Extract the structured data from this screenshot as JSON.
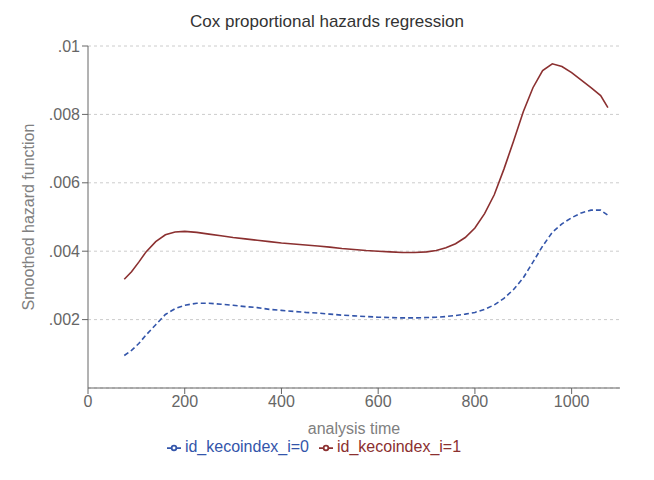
{
  "chart_data": {
    "type": "line",
    "title": "Cox proportional hazards regression",
    "xlabel": "analysis time",
    "ylabel": "Smoothed hazard function",
    "x": [
      75,
      90,
      105,
      120,
      140,
      160,
      180,
      200,
      225,
      250,
      275,
      300,
      325,
      350,
      375,
      400,
      425,
      450,
      475,
      500,
      525,
      550,
      575,
      600,
      625,
      650,
      675,
      700,
      720,
      740,
      760,
      780,
      800,
      820,
      840,
      860,
      880,
      900,
      920,
      940,
      960,
      980,
      1000,
      1020,
      1040,
      1060,
      1075
    ],
    "series": [
      {
        "name": "id_kecoindex_i=0",
        "color": "#3355aa",
        "line_style": "dashed",
        "values": [
          0.00095,
          0.0011,
          0.0013,
          0.00155,
          0.00185,
          0.00215,
          0.00232,
          0.00242,
          0.00248,
          0.00248,
          0.00245,
          0.00242,
          0.00238,
          0.00235,
          0.0023,
          0.00227,
          0.00224,
          0.00221,
          0.00219,
          0.00216,
          0.00213,
          0.00211,
          0.00209,
          0.00207,
          0.00206,
          0.00205,
          0.00205,
          0.00206,
          0.00207,
          0.00209,
          0.00212,
          0.00216,
          0.00221,
          0.0023,
          0.00243,
          0.00262,
          0.00288,
          0.00322,
          0.00368,
          0.00415,
          0.00455,
          0.0048,
          0.00498,
          0.00512,
          0.0052,
          0.0052,
          0.00505
        ]
      },
      {
        "name": "id_kecoindex_i=1",
        "color": "#8b3030",
        "line_style": "solid",
        "values": [
          0.00318,
          0.0034,
          0.00368,
          0.00398,
          0.00428,
          0.00448,
          0.00456,
          0.00458,
          0.00455,
          0.0045,
          0.00445,
          0.0044,
          0.00436,
          0.00432,
          0.00428,
          0.00424,
          0.00421,
          0.00418,
          0.00415,
          0.00412,
          0.00408,
          0.00405,
          0.00402,
          0.004,
          0.00398,
          0.00396,
          0.00396,
          0.00398,
          0.00402,
          0.0041,
          0.00422,
          0.0044,
          0.00468,
          0.0051,
          0.00565,
          0.0064,
          0.00722,
          0.00808,
          0.00878,
          0.00928,
          0.00948,
          0.0094,
          0.00922,
          0.009,
          0.00878,
          0.00855,
          0.0082
        ]
      }
    ],
    "xlim": [
      0,
      1100
    ],
    "xticks": [
      0,
      200,
      400,
      600,
      800,
      1000
    ],
    "ylim": [
      0,
      0.01
    ],
    "yticks": [
      {
        "value": 0.002,
        "label": ".002"
      },
      {
        "value": 0.004,
        "label": ".004"
      },
      {
        "value": 0.006,
        "label": ".006"
      },
      {
        "value": 0.008,
        "label": ".008"
      },
      {
        "value": 0.01,
        "label": ".01"
      }
    ],
    "grid": true,
    "legend": "bottom"
  }
}
